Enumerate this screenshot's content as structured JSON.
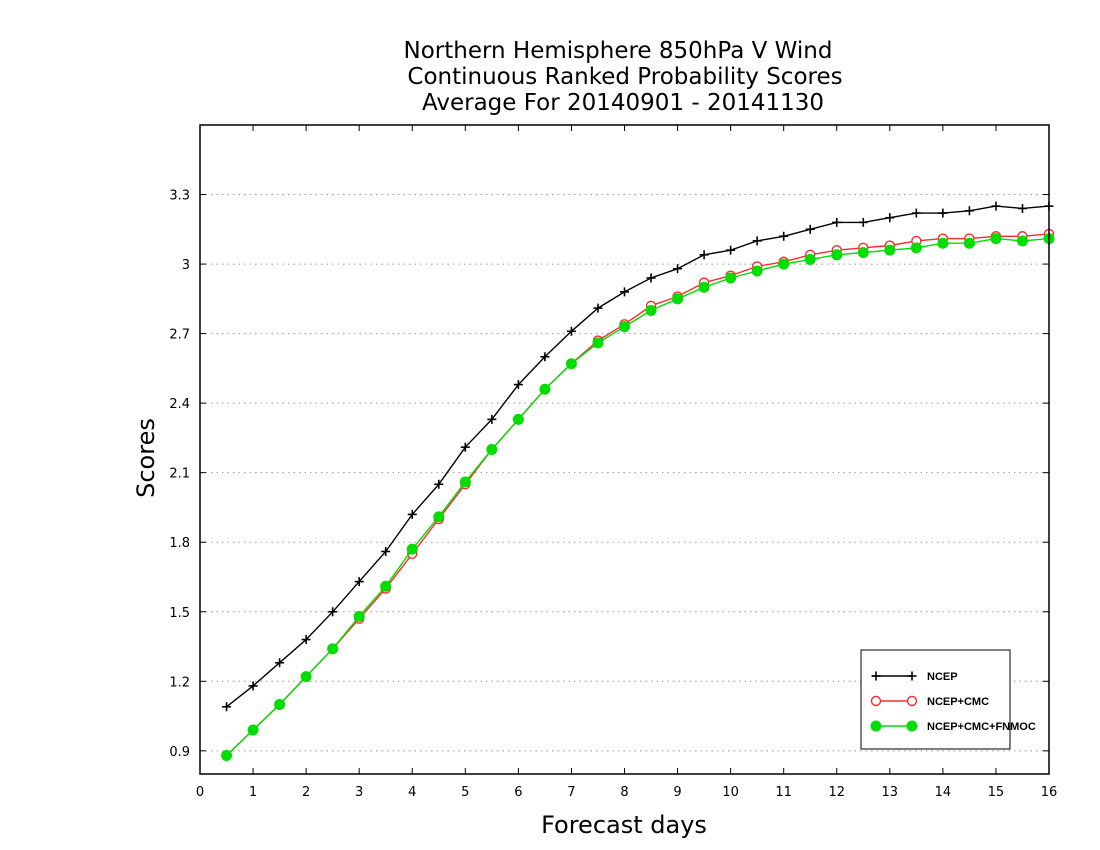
{
  "chart_data": {
    "type": "line",
    "title": [
      "Northern Hemisphere 850hPa V Wind",
      "Continuous Ranked Probability Scores",
      "Average For 20140901 - 20141130"
    ],
    "xlabel": "Forecast days",
    "ylabel": "Scores",
    "xlim": [
      0,
      16
    ],
    "ylim": [
      0.8,
      3.6
    ],
    "xticks": [
      0,
      1,
      2,
      3,
      4,
      5,
      6,
      7,
      8,
      9,
      10,
      11,
      12,
      13,
      14,
      15,
      16
    ],
    "yticks": [
      0.9,
      1.2,
      1.5,
      1.8,
      2.1,
      2.4,
      2.7,
      3,
      3.3
    ],
    "ytick_labels": [
      "0.9",
      "1.2",
      "1.5",
      "1.8",
      "2.1",
      "2.4",
      "2.7",
      "3",
      "3.3"
    ],
    "grid": "horizontal dotted",
    "legend_position": "bottom-right",
    "x": [
      0.5,
      1,
      1.5,
      2,
      2.5,
      3,
      3.5,
      4,
      4.5,
      5,
      5.5,
      6,
      6.5,
      7,
      7.5,
      8,
      8.5,
      9,
      9.5,
      10,
      10.5,
      11,
      11.5,
      12,
      12.5,
      13,
      13.5,
      14,
      14.5,
      15,
      15.5,
      16
    ],
    "series": [
      {
        "name": "NCEP",
        "color": "#000000",
        "marker": "plus",
        "values": [
          1.09,
          1.18,
          1.28,
          1.38,
          1.5,
          1.63,
          1.76,
          1.92,
          2.05,
          2.21,
          2.33,
          2.48,
          2.6,
          2.71,
          2.81,
          2.88,
          2.94,
          2.98,
          3.04,
          3.06,
          3.1,
          3.12,
          3.15,
          3.18,
          3.18,
          3.2,
          3.22,
          3.22,
          3.23,
          3.25,
          3.24,
          3.25
        ]
      },
      {
        "name": "NCEP+CMC",
        "color": "#ff2a2a",
        "marker": "open-circle",
        "values": [
          0.88,
          0.99,
          1.1,
          1.22,
          1.34,
          1.47,
          1.6,
          1.75,
          1.9,
          2.05,
          2.2,
          2.33,
          2.46,
          2.57,
          2.67,
          2.74,
          2.82,
          2.86,
          2.92,
          2.95,
          2.99,
          3.01,
          3.04,
          3.06,
          3.07,
          3.08,
          3.1,
          3.11,
          3.11,
          3.12,
          3.12,
          3.13
        ]
      },
      {
        "name": "NCEP+CMC+FNMOC",
        "color": "#00dd00",
        "marker": "filled-circle",
        "values": [
          0.88,
          0.99,
          1.1,
          1.22,
          1.34,
          1.48,
          1.61,
          1.77,
          1.91,
          2.06,
          2.2,
          2.33,
          2.46,
          2.57,
          2.66,
          2.73,
          2.8,
          2.85,
          2.9,
          2.94,
          2.97,
          3.0,
          3.02,
          3.04,
          3.05,
          3.06,
          3.07,
          3.09,
          3.09,
          3.11,
          3.1,
          3.11
        ]
      }
    ]
  }
}
